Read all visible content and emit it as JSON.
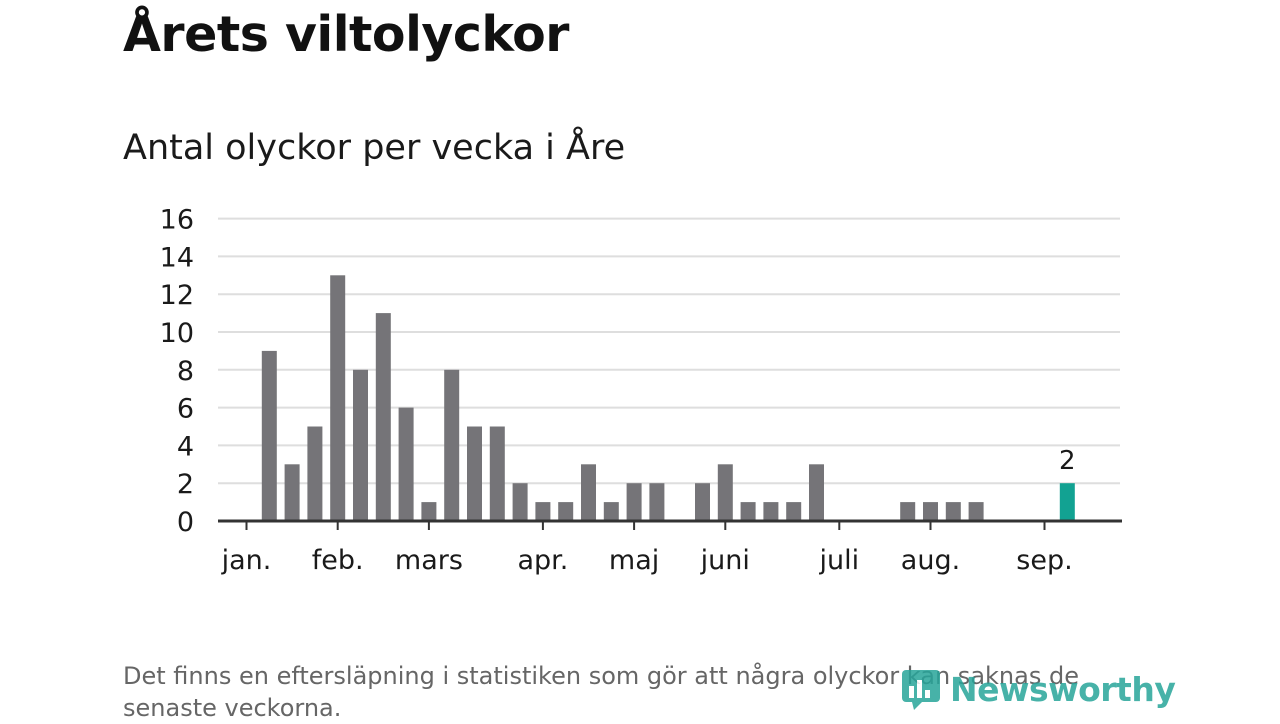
{
  "title": "Årets viltolyckor",
  "subtitle": "Antal olyckor per vecka i Åre",
  "note": "Det finns en eftersläpning i statistiken som gör att några olyckor kan saknas de senaste veckorna.",
  "logo_text": "Newsworthy",
  "colors": {
    "bar": "#757478",
    "highlight": "#12a292",
    "grid": "#dedede",
    "axis": "#333333"
  },
  "chart_data": {
    "type": "bar",
    "title": "Antal olyckor per vecka i Åre",
    "xlabel": "",
    "ylabel": "",
    "ylim": [
      0,
      16
    ],
    "yticks": [
      0,
      2,
      4,
      6,
      8,
      10,
      12,
      14,
      16
    ],
    "grid": true,
    "legend": "none",
    "month_labels": [
      "jan.",
      "feb.",
      "mars",
      "apr.",
      "maj",
      "juni",
      "juli",
      "aug.",
      "sep."
    ],
    "month_week_index": [
      0,
      4,
      8,
      13,
      17,
      21,
      26,
      30,
      35
    ],
    "weeks": [
      1,
      2,
      3,
      4,
      5,
      6,
      7,
      8,
      9,
      10,
      11,
      12,
      13,
      14,
      15,
      16,
      17,
      18,
      19,
      20,
      21,
      22,
      23,
      24,
      25,
      26,
      27,
      28,
      29,
      30,
      31,
      32,
      33,
      34,
      35,
      36,
      37,
      38
    ],
    "values": [
      0,
      9,
      3,
      5,
      13,
      8,
      11,
      6,
      1,
      8,
      5,
      5,
      2,
      1,
      1,
      3,
      1,
      2,
      2,
      0,
      2,
      3,
      1,
      1,
      1,
      3,
      0,
      0,
      0,
      1,
      1,
      1,
      1,
      0,
      0,
      0,
      2,
      0
    ],
    "highlight_week": 37,
    "highlight_label": "2"
  }
}
